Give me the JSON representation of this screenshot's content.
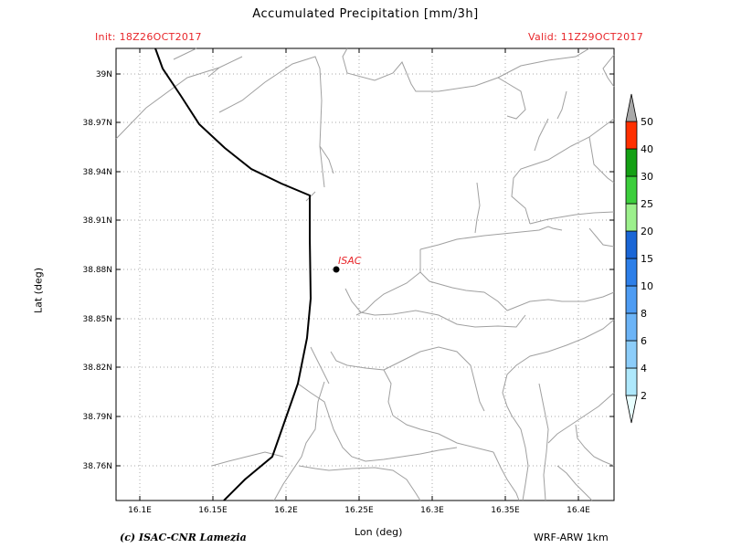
{
  "header": {
    "title": "Accumulated Precipitation [mm/3h]",
    "init": "Init: 18Z26OCT2017",
    "valid": "Valid: 11Z29OCT2017"
  },
  "map": {
    "x_ticks": [
      "16.1E",
      "16.15E",
      "16.2E",
      "16.25E",
      "16.3E",
      "16.35E",
      "16.4E"
    ],
    "y_ticks": [
      "39N",
      "38.97N",
      "38.94N",
      "38.91N",
      "38.88N",
      "38.85N",
      "38.82N",
      "38.79N",
      "38.76N"
    ],
    "xlabel": "Lon (deg)",
    "ylabel": "Lat (deg)",
    "station": {
      "name": "ISAC",
      "lon": 16.24,
      "lat": 38.88
    },
    "grid": true
  },
  "colorbar": {
    "levels": [
      "2",
      "4",
      "6",
      "8",
      "10",
      "15",
      "20",
      "25",
      "30",
      "40",
      "50"
    ],
    "colors": [
      "#e8ffff",
      "#aee8fc",
      "#8ccdfa",
      "#6cb4f7",
      "#4e9cf3",
      "#2d7fe9",
      "#1a66d6",
      "#9cf08c",
      "#3cce3c",
      "#14a014",
      "#ff3000",
      "#a8a8a8"
    ]
  },
  "footer": {
    "credit": "(c) ISAC-CNR Lamezia",
    "model": "WRF-ARW 1km"
  },
  "colors": {
    "header_red": "#e8262a",
    "coast": "#000000",
    "roads": "#a0a0a0",
    "station_label": "#e8262a"
  }
}
